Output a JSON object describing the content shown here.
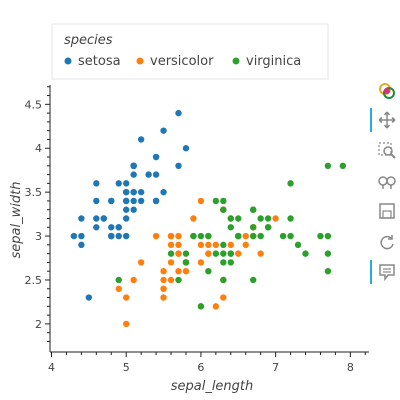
{
  "chart_data": {
    "type": "scatter",
    "title": "",
    "xlabel": "sepal_length",
    "ylabel": "sepal_width",
    "xlim": [
      3.98,
      8.25
    ],
    "ylim": [
      1.68,
      4.72
    ],
    "xticks": [
      "4",
      "5",
      "6",
      "7",
      "8"
    ],
    "yticks": [
      "2",
      "2.5",
      "3",
      "3.5",
      "4",
      "4.5"
    ],
    "grid": false,
    "legend": {
      "title": "species",
      "placement": "top-left-outside",
      "orientation": "horizontal"
    },
    "series": [
      {
        "name": "setosa",
        "color": "#1f77b4",
        "points": [
          [
            5.1,
            3.5
          ],
          [
            4.9,
            3.0
          ],
          [
            4.7,
            3.2
          ],
          [
            4.6,
            3.1
          ],
          [
            5.0,
            3.6
          ],
          [
            5.4,
            3.9
          ],
          [
            4.6,
            3.4
          ],
          [
            5.0,
            3.4
          ],
          [
            4.4,
            2.9
          ],
          [
            4.9,
            3.1
          ],
          [
            5.4,
            3.7
          ],
          [
            4.8,
            3.4
          ],
          [
            4.8,
            3.0
          ],
          [
            4.3,
            3.0
          ],
          [
            5.8,
            4.0
          ],
          [
            5.7,
            4.4
          ],
          [
            5.4,
            3.9
          ],
          [
            5.1,
            3.5
          ],
          [
            5.7,
            3.8
          ],
          [
            5.1,
            3.8
          ],
          [
            5.4,
            3.4
          ],
          [
            5.1,
            3.7
          ],
          [
            4.6,
            3.6
          ],
          [
            5.1,
            3.3
          ],
          [
            4.8,
            3.4
          ],
          [
            5.0,
            3.0
          ],
          [
            5.0,
            3.4
          ],
          [
            5.2,
            3.5
          ],
          [
            5.2,
            3.4
          ],
          [
            4.7,
            3.2
          ],
          [
            4.8,
            3.1
          ],
          [
            5.4,
            3.4
          ],
          [
            5.2,
            4.1
          ],
          [
            5.5,
            4.2
          ],
          [
            4.9,
            3.1
          ],
          [
            5.0,
            3.2
          ],
          [
            5.5,
            3.5
          ],
          [
            4.9,
            3.6
          ],
          [
            4.4,
            3.0
          ],
          [
            5.1,
            3.4
          ],
          [
            5.0,
            3.5
          ],
          [
            4.5,
            2.3
          ],
          [
            4.4,
            3.2
          ],
          [
            5.0,
            3.5
          ],
          [
            5.1,
            3.8
          ],
          [
            4.8,
            3.0
          ],
          [
            5.1,
            3.8
          ],
          [
            4.6,
            3.2
          ],
          [
            5.3,
            3.7
          ],
          [
            5.0,
            3.3
          ]
        ]
      },
      {
        "name": "versicolor",
        "color": "#ff7f0e",
        "points": [
          [
            7.0,
            3.2
          ],
          [
            6.4,
            3.2
          ],
          [
            6.9,
            3.1
          ],
          [
            5.5,
            2.3
          ],
          [
            6.5,
            2.8
          ],
          [
            5.7,
            2.8
          ],
          [
            6.3,
            3.3
          ],
          [
            4.9,
            2.4
          ],
          [
            6.6,
            2.9
          ],
          [
            5.2,
            2.7
          ],
          [
            5.0,
            2.0
          ],
          [
            5.9,
            3.0
          ],
          [
            6.0,
            2.2
          ],
          [
            6.1,
            2.9
          ],
          [
            5.6,
            2.9
          ],
          [
            6.7,
            3.1
          ],
          [
            5.6,
            3.0
          ],
          [
            5.8,
            2.7
          ],
          [
            6.2,
            2.2
          ],
          [
            5.6,
            2.5
          ],
          [
            5.9,
            3.2
          ],
          [
            6.1,
            2.8
          ],
          [
            6.3,
            2.5
          ],
          [
            6.1,
            2.8
          ],
          [
            6.4,
            2.9
          ],
          [
            6.6,
            3.0
          ],
          [
            6.8,
            2.8
          ],
          [
            6.7,
            3.0
          ],
          [
            6.0,
            2.9
          ],
          [
            5.7,
            2.6
          ],
          [
            5.5,
            2.4
          ],
          [
            5.5,
            2.4
          ],
          [
            5.8,
            2.7
          ],
          [
            6.0,
            2.7
          ],
          [
            5.4,
            3.0
          ],
          [
            6.0,
            3.4
          ],
          [
            6.7,
            3.1
          ],
          [
            6.3,
            2.3
          ],
          [
            5.6,
            3.0
          ],
          [
            5.5,
            2.5
          ],
          [
            5.5,
            2.6
          ],
          [
            6.1,
            3.0
          ],
          [
            5.8,
            2.6
          ],
          [
            5.0,
            2.3
          ],
          [
            5.6,
            2.7
          ],
          [
            5.7,
            3.0
          ],
          [
            5.7,
            2.9
          ],
          [
            6.2,
            2.9
          ],
          [
            5.1,
            2.5
          ],
          [
            5.7,
            2.8
          ]
        ]
      },
      {
        "name": "virginica",
        "color": "#2ca02c",
        "points": [
          [
            6.3,
            3.3
          ],
          [
            5.8,
            2.7
          ],
          [
            7.1,
            3.0
          ],
          [
            6.3,
            2.9
          ],
          [
            6.5,
            3.0
          ],
          [
            7.6,
            3.0
          ],
          [
            4.9,
            2.5
          ],
          [
            7.3,
            2.9
          ],
          [
            6.7,
            2.5
          ],
          [
            7.2,
            3.6
          ],
          [
            6.5,
            3.2
          ],
          [
            6.4,
            2.7
          ],
          [
            6.8,
            3.0
          ],
          [
            5.7,
            2.5
          ],
          [
            5.8,
            2.8
          ],
          [
            6.4,
            3.2
          ],
          [
            6.5,
            3.0
          ],
          [
            7.7,
            3.8
          ],
          [
            7.7,
            2.6
          ],
          [
            6.0,
            2.2
          ],
          [
            6.9,
            3.2
          ],
          [
            5.6,
            2.8
          ],
          [
            7.7,
            2.8
          ],
          [
            6.3,
            2.7
          ],
          [
            6.7,
            3.3
          ],
          [
            7.2,
            3.2
          ],
          [
            6.2,
            2.8
          ],
          [
            6.1,
            3.0
          ],
          [
            6.4,
            2.8
          ],
          [
            7.2,
            3.0
          ],
          [
            7.4,
            2.8
          ],
          [
            7.9,
            3.8
          ],
          [
            6.4,
            2.8
          ],
          [
            6.3,
            2.8
          ],
          [
            6.1,
            2.6
          ],
          [
            7.7,
            3.0
          ],
          [
            6.3,
            3.4
          ],
          [
            6.4,
            3.1
          ],
          [
            6.0,
            3.0
          ],
          [
            6.9,
            3.1
          ],
          [
            6.7,
            3.1
          ],
          [
            6.9,
            3.1
          ],
          [
            5.8,
            2.7
          ],
          [
            6.8,
            3.2
          ],
          [
            6.7,
            3.3
          ],
          [
            6.7,
            3.0
          ],
          [
            6.3,
            2.5
          ],
          [
            6.5,
            3.0
          ],
          [
            6.2,
            3.4
          ],
          [
            5.9,
            3.0
          ]
        ]
      }
    ]
  },
  "toolbar": {
    "tools": [
      "bokeh-logo-icon",
      "pan-icon",
      "box-zoom-icon",
      "wheel-zoom-icon",
      "save-icon",
      "reset-icon",
      "hover-icon"
    ]
  }
}
